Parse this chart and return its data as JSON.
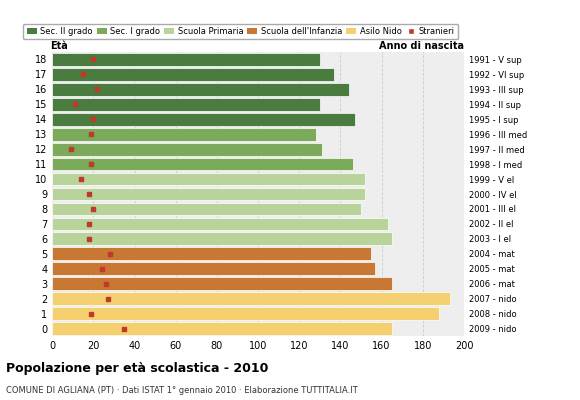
{
  "ages": [
    18,
    17,
    16,
    15,
    14,
    13,
    12,
    11,
    10,
    9,
    8,
    7,
    6,
    5,
    4,
    3,
    2,
    1,
    0
  ],
  "anno_labels": [
    "1991 - V sup",
    "1992 - VI sup",
    "1993 - III sup",
    "1994 - II sup",
    "1995 - I sup",
    "1996 - III med",
    "1997 - II med",
    "1998 - I med",
    "1999 - V el",
    "2000 - IV el",
    "2001 - III el",
    "2002 - II el",
    "2003 - I el",
    "2004 - mat",
    "2005 - mat",
    "2006 - mat",
    "2007 - nido",
    "2008 - nido",
    "2009 - nido"
  ],
  "bar_values": [
    130,
    137,
    144,
    130,
    147,
    128,
    131,
    146,
    152,
    152,
    150,
    163,
    165,
    155,
    157,
    165,
    193,
    188,
    165
  ],
  "stranieri": [
    20,
    15,
    22,
    11,
    20,
    19,
    9,
    19,
    14,
    18,
    20,
    18,
    18,
    28,
    24,
    26,
    27,
    19,
    35
  ],
  "bar_colors": [
    "#4a7c3f",
    "#4a7c3f",
    "#4a7c3f",
    "#4a7c3f",
    "#4a7c3f",
    "#7aaa5a",
    "#7aaa5a",
    "#7aaa5a",
    "#b8d49a",
    "#b8d49a",
    "#b8d49a",
    "#b8d49a",
    "#b8d49a",
    "#c87832",
    "#c87832",
    "#c87832",
    "#f5d070",
    "#f5d070",
    "#f5d070"
  ],
  "legend_colors": [
    "#4a7c3f",
    "#7aaa5a",
    "#b8d49a",
    "#c87832",
    "#f5d070",
    "#c0392b"
  ],
  "legend_labels": [
    "Sec. II grado",
    "Sec. I grado",
    "Scuola Primaria",
    "Scuola dell'Infanzia",
    "Asilo Nido",
    "Stranieri"
  ],
  "stranieri_color": "#c0392b",
  "title": "Popolazione per età scolastica - 2010",
  "subtitle": "COMUNE DI AGLIANA (PT) · Dati ISTAT 1° gennaio 2010 · Elaborazione TUTTITALIA.IT",
  "xlabel_eta": "Età",
  "xlabel_anno": "Anno di nascita",
  "xlim": [
    0,
    200
  ],
  "xticks": [
    0,
    20,
    40,
    60,
    80,
    100,
    120,
    140,
    160,
    180,
    200
  ],
  "bg_color": "#ffffff",
  "plot_bg": "#eeeeee",
  "grid_color": "#cccccc"
}
